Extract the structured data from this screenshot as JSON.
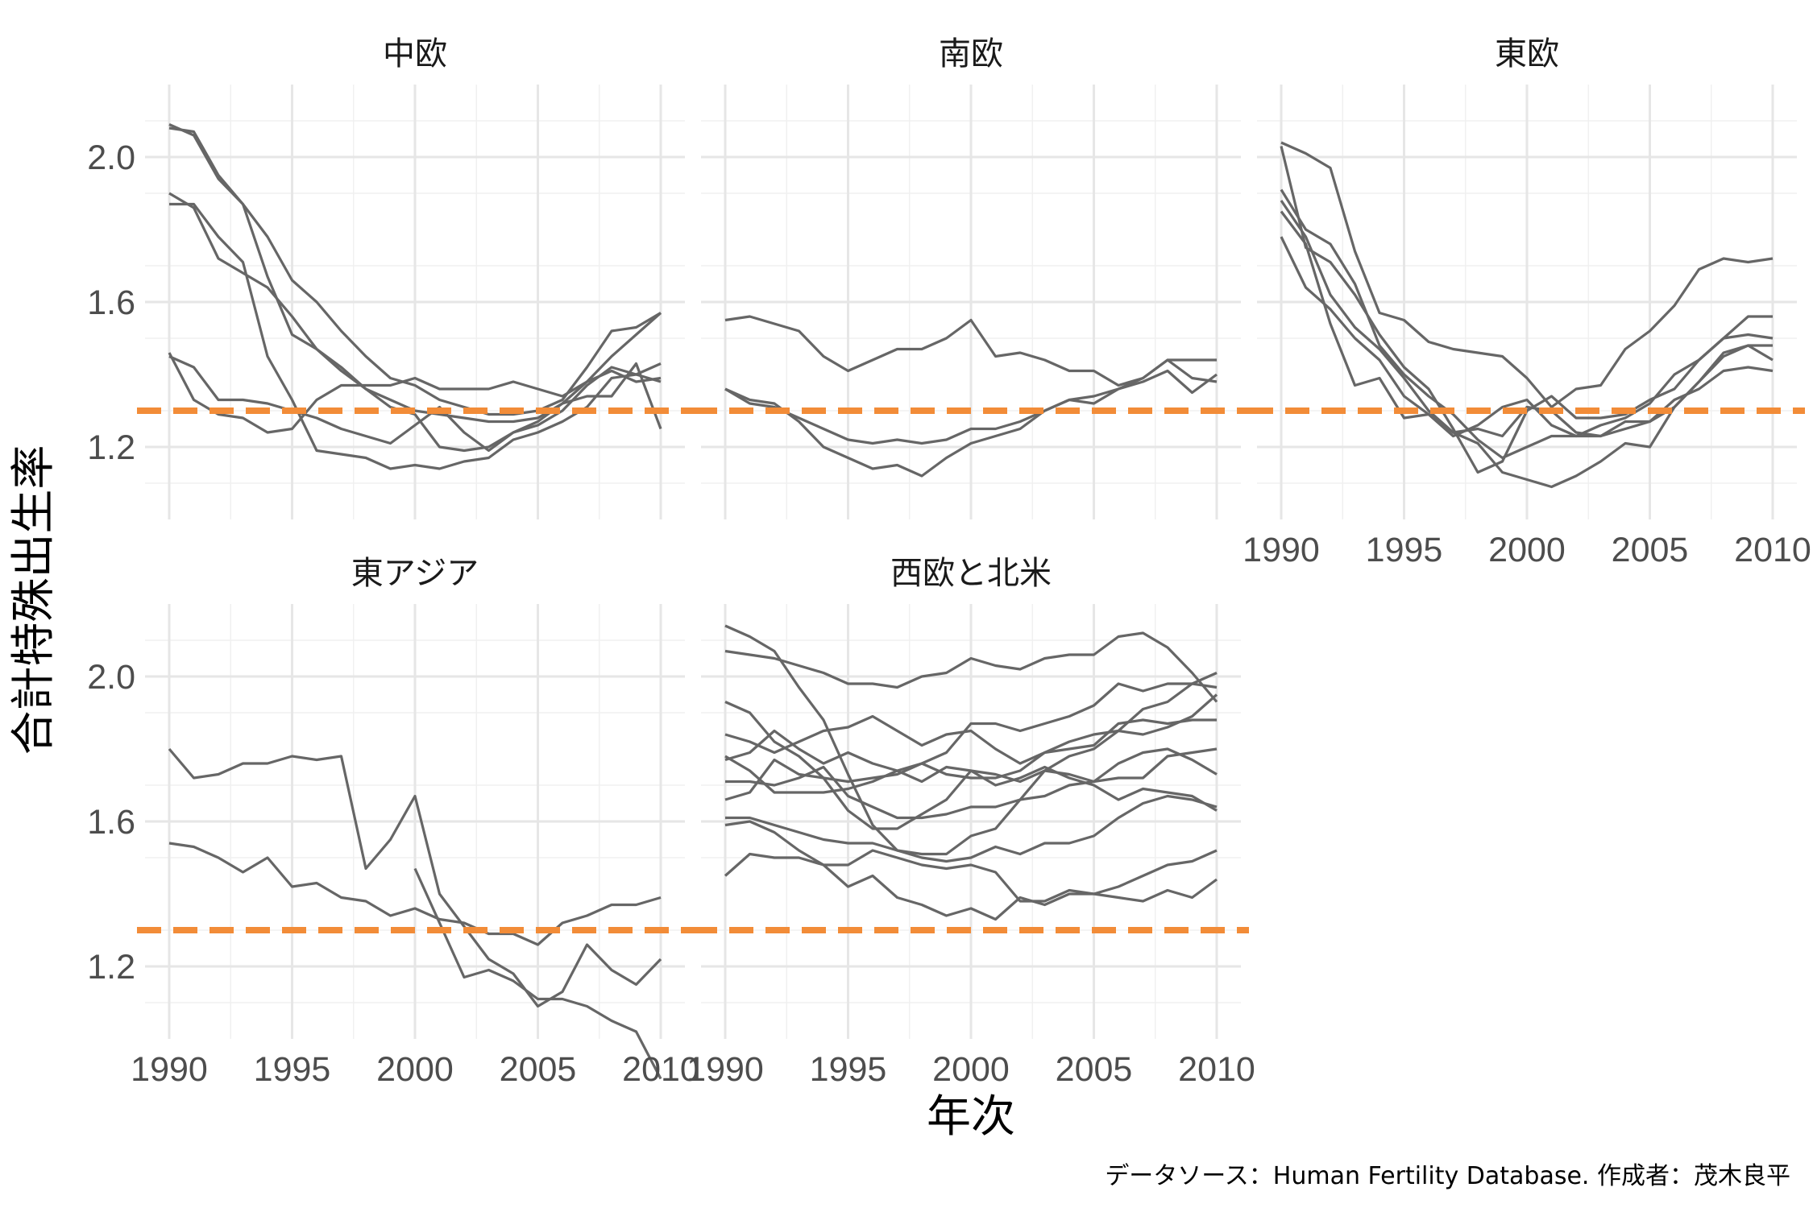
{
  "chart_data": {
    "type": "line",
    "facet": true,
    "xlabel": "年次",
    "ylabel": "合計特殊出生率",
    "caption": "データソース：Human Fertility Database. 作成者：茂木良平",
    "xlim": [
      1990,
      2010
    ],
    "ylim": [
      1.0,
      2.2
    ],
    "x_ticks": [
      1990,
      1995,
      2000,
      2005,
      2010
    ],
    "y_ticks": [
      1.2,
      1.6,
      2.0
    ],
    "reference_line": {
      "y": 1.3,
      "color": "#f28c38",
      "style": "dashed"
    },
    "line_color": "#666666",
    "grid": true,
    "x": [
      1990,
      1991,
      1992,
      1993,
      1994,
      1995,
      1996,
      1997,
      1998,
      1999,
      2000,
      2001,
      2002,
      2003,
      2004,
      2005,
      2006,
      2007,
      2008,
      2009,
      2010
    ],
    "panels": [
      {
        "title": "中欧",
        "series": [
          {
            "values": [
              2.09,
              2.06,
              1.94,
              1.87,
              1.67,
              1.51,
              1.47,
              1.42,
              1.36,
              1.33,
              1.3,
              1.29,
              1.28,
              1.27,
              1.27,
              1.28,
              1.32,
              1.38,
              1.45,
              1.51,
              1.57
            ]
          },
          {
            "values": [
              2.08,
              2.07,
              1.95,
              1.87,
              1.78,
              1.66,
              1.6,
              1.52,
              1.45,
              1.39,
              1.37,
              1.33,
              1.31,
              1.29,
              1.29,
              1.3,
              1.33,
              1.42,
              1.52,
              1.53,
              1.57
            ]
          },
          {
            "values": [
              1.9,
              1.86,
              1.72,
              1.68,
              1.64,
              1.56,
              1.47,
              1.41,
              1.36,
              1.31,
              1.29,
              1.2,
              1.19,
              1.2,
              1.24,
              1.26,
              1.3,
              1.37,
              1.42,
              1.4,
              1.43
            ]
          },
          {
            "values": [
              1.87,
              1.87,
              1.78,
              1.71,
              1.45,
              1.33,
              1.19,
              1.18,
              1.17,
              1.14,
              1.15,
              1.14,
              1.16,
              1.17,
              1.22,
              1.24,
              1.27,
              1.31,
              1.39,
              1.4,
              1.38
            ]
          },
          {
            "values": [
              1.46,
              1.33,
              1.29,
              1.28,
              1.24,
              1.25,
              1.33,
              1.37,
              1.37,
              1.37,
              1.39,
              1.36,
              1.36,
              1.36,
              1.38,
              1.36,
              1.34,
              1.38,
              1.41,
              1.38,
              1.39
            ]
          },
          {
            "values": [
              1.45,
              1.42,
              1.33,
              1.33,
              1.32,
              1.3,
              1.28,
              1.25,
              1.23,
              1.21,
              1.26,
              1.31,
              1.24,
              1.19,
              1.24,
              1.27,
              1.32,
              1.34,
              1.34,
              1.43,
              1.25
            ]
          }
        ]
      },
      {
        "title": "南欧",
        "series": [
          {
            "values": [
              1.55,
              1.56,
              1.54,
              1.52,
              1.45,
              1.41,
              1.44,
              1.47,
              1.47,
              1.5,
              1.55,
              1.45,
              1.46,
              1.44,
              1.41,
              1.41,
              1.37,
              1.39,
              1.44,
              1.44,
              1.44
            ]
          },
          {
            "values": [
              1.36,
              1.32,
              1.31,
              1.28,
              1.25,
              1.22,
              1.21,
              1.22,
              1.21,
              1.22,
              1.25,
              1.25,
              1.27,
              1.3,
              1.33,
              1.34,
              1.36,
              1.39,
              1.44,
              1.39,
              1.38
            ]
          },
          {
            "values": [
              1.36,
              1.33,
              1.32,
              1.27,
              1.2,
              1.17,
              1.14,
              1.15,
              1.12,
              1.17,
              1.21,
              1.23,
              1.25,
              1.3,
              1.33,
              1.32,
              1.36,
              1.38,
              1.41,
              1.35,
              1.4
            ]
          }
        ]
      },
      {
        "title": "東欧",
        "series": [
          {
            "values": [
              2.04,
              2.01,
              1.97,
              1.74,
              1.57,
              1.55,
              1.49,
              1.47,
              1.46,
              1.45,
              1.39,
              1.31,
              1.36,
              1.37,
              1.47,
              1.52,
              1.59,
              1.69,
              1.72,
              1.71,
              1.72
            ]
          },
          {
            "values": [
              2.03,
              1.75,
              1.71,
              1.62,
              1.51,
              1.42,
              1.36,
              1.25,
              1.13,
              1.16,
              1.3,
              1.34,
              1.28,
              1.28,
              1.29,
              1.33,
              1.36,
              1.44,
              1.5,
              1.56,
              1.56
            ]
          },
          {
            "values": [
              1.91,
              1.8,
              1.76,
              1.65,
              1.48,
              1.4,
              1.34,
              1.29,
              1.22,
              1.17,
              1.2,
              1.23,
              1.23,
              1.26,
              1.28,
              1.32,
              1.4,
              1.44,
              1.5,
              1.51,
              1.5
            ]
          },
          {
            "values": [
              1.88,
              1.78,
              1.62,
              1.53,
              1.47,
              1.39,
              1.3,
              1.24,
              1.25,
              1.23,
              1.31,
              1.3,
              1.24,
              1.23,
              1.27,
              1.27,
              1.31,
              1.38,
              1.46,
              1.48,
              1.44
            ]
          },
          {
            "values": [
              1.85,
              1.76,
              1.54,
              1.37,
              1.39,
              1.28,
              1.29,
              1.23,
              1.26,
              1.31,
              1.33,
              1.26,
              1.23,
              1.23,
              1.25,
              1.27,
              1.33,
              1.36,
              1.41,
              1.42,
              1.41
            ]
          },
          {
            "values": [
              1.78,
              1.64,
              1.58,
              1.5,
              1.44,
              1.34,
              1.29,
              1.24,
              1.21,
              1.13,
              1.11,
              1.09,
              1.12,
              1.16,
              1.21,
              1.2,
              1.31,
              1.38,
              1.45,
              1.48,
              1.48
            ]
          }
        ]
      },
      {
        "title": "東アジア",
        "series": [
          {
            "values": [
              1.8,
              1.72,
              1.73,
              1.76,
              1.76,
              1.78,
              1.77,
              1.78,
              1.47,
              1.55,
              1.67,
              1.4,
              1.31,
              1.22,
              1.18,
              1.09,
              1.13,
              1.26,
              1.19,
              1.15,
              1.22
            ]
          },
          {
            "values": [
              1.54,
              1.53,
              1.5,
              1.46,
              1.5,
              1.42,
              1.43,
              1.39,
              1.38,
              1.34,
              1.36,
              1.33,
              1.32,
              1.29,
              1.29,
              1.26,
              1.32,
              1.34,
              1.37,
              1.37,
              1.39
            ]
          },
          {
            "values": [
              null,
              null,
              null,
              null,
              null,
              null,
              null,
              null,
              null,
              null,
              1.47,
              1.32,
              1.17,
              1.19,
              1.16,
              1.11,
              1.11,
              1.09,
              1.05,
              1.02,
              0.89
            ]
          }
        ]
      },
      {
        "title": "西欧と北米",
        "series": [
          {
            "values": [
              2.14,
              2.11,
              2.07,
              1.97,
              1.88,
              1.73,
              1.59,
              1.52,
              1.51,
              1.51,
              1.56,
              1.58,
              1.66,
              1.74,
              1.78,
              1.8,
              1.85,
              1.91,
              1.93,
              1.98,
              2.01
            ]
          },
          {
            "values": [
              2.07,
              2.06,
              2.05,
              2.03,
              2.01,
              1.98,
              1.98,
              1.97,
              2.0,
              2.01,
              2.05,
              2.03,
              2.02,
              2.05,
              2.06,
              2.06,
              2.11,
              2.12,
              2.08,
              2.01,
              1.93
            ]
          },
          {
            "values": [
              1.93,
              1.9,
              1.82,
              1.78,
              1.72,
              1.71,
              1.72,
              1.73,
              1.76,
              1.79,
              1.87,
              1.87,
              1.85,
              1.87,
              1.89,
              1.92,
              1.98,
              1.96,
              1.98,
              1.98,
              1.97
            ]
          },
          {
            "values": [
              1.84,
              1.82,
              1.79,
              1.82,
              1.85,
              1.86,
              1.89,
              1.85,
              1.81,
              1.84,
              1.85,
              1.8,
              1.76,
              1.79,
              1.82,
              1.84,
              1.85,
              1.84,
              1.86,
              1.89,
              1.95
            ]
          },
          {
            "values": [
              1.78,
              1.74,
              1.68,
              1.68,
              1.68,
              1.69,
              1.71,
              1.74,
              1.76,
              1.73,
              1.72,
              1.72,
              1.74,
              1.79,
              1.8,
              1.81,
              1.87,
              1.88,
              1.87,
              1.88,
              1.88
            ]
          },
          {
            "values": [
              1.77,
              1.79,
              1.85,
              1.8,
              1.76,
              1.79,
              1.76,
              1.74,
              1.71,
              1.75,
              1.74,
              1.73,
              1.71,
              1.74,
              1.73,
              1.71,
              1.72,
              1.72,
              1.78,
              1.79,
              1.8
            ]
          },
          {
            "values": [
              1.71,
              1.71,
              1.7,
              1.72,
              1.75,
              1.67,
              1.64,
              1.61,
              1.61,
              1.62,
              1.64,
              1.64,
              1.66,
              1.67,
              1.7,
              1.71,
              1.76,
              1.79,
              1.8,
              1.77,
              1.73
            ]
          },
          {
            "values": [
              1.66,
              1.68,
              1.77,
              1.73,
              1.72,
              1.63,
              1.58,
              1.58,
              1.62,
              1.66,
              1.74,
              1.7,
              1.72,
              1.75,
              1.72,
              1.7,
              1.66,
              1.69,
              1.68,
              1.67,
              1.63
            ]
          },
          {
            "values": [
              1.61,
              1.61,
              1.59,
              1.57,
              1.55,
              1.54,
              1.54,
              1.52,
              1.5,
              1.49,
              1.5,
              1.53,
              1.51,
              1.54,
              1.54,
              1.56,
              1.61,
              1.65,
              1.67,
              1.66,
              1.64
            ]
          },
          {
            "values": [
              1.59,
              1.6,
              1.57,
              1.52,
              1.48,
              1.48,
              1.52,
              1.5,
              1.48,
              1.47,
              1.48,
              1.46,
              1.38,
              1.38,
              1.41,
              1.4,
              1.42,
              1.45,
              1.48,
              1.49,
              1.52
            ]
          },
          {
            "values": [
              1.45,
              1.51,
              1.5,
              1.5,
              1.48,
              1.42,
              1.45,
              1.39,
              1.37,
              1.34,
              1.36,
              1.33,
              1.39,
              1.37,
              1.4,
              1.4,
              1.39,
              1.38,
              1.41,
              1.39,
              1.44
            ]
          }
        ]
      }
    ]
  }
}
